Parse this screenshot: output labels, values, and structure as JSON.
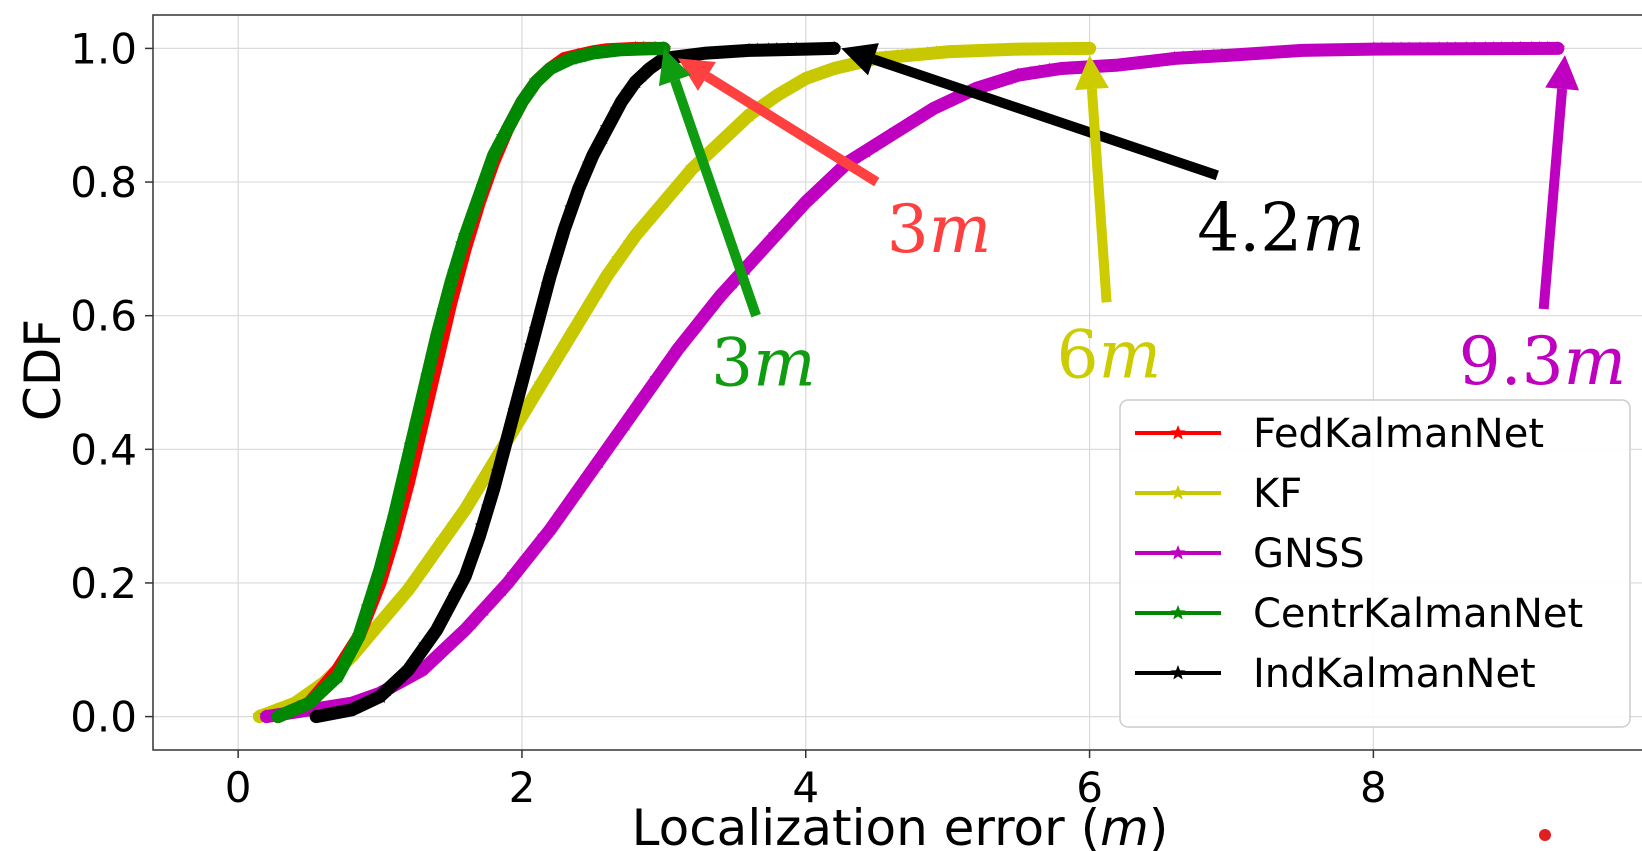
{
  "chart_data": {
    "type": "line",
    "title": "",
    "xlabel": "Localization error",
    "xlabel_unit": "m",
    "ylabel": "CDF",
    "xlim": [
      -0.6,
      9.9
    ],
    "ylim": [
      -0.05,
      1.05
    ],
    "xticks": [
      "0",
      "2",
      "4",
      "6",
      "8"
    ],
    "yticks": [
      "0.0",
      "0.2",
      "0.4",
      "0.6",
      "0.8",
      "1.0"
    ],
    "grid": true,
    "legend_position": "lower-right",
    "series": [
      {
        "name": "FedKalmanNet",
        "color": "#ff0000",
        "marker": "star",
        "x": [
          0.28,
          0.5,
          0.7,
          0.85,
          1.0,
          1.1,
          1.2,
          1.3,
          1.4,
          1.5,
          1.6,
          1.7,
          1.8,
          1.9,
          2.0,
          2.1,
          2.2,
          2.3,
          2.4,
          2.5,
          2.6,
          2.8,
          3.0
        ],
        "y": [
          0.0,
          0.02,
          0.07,
          0.12,
          0.2,
          0.27,
          0.35,
          0.44,
          0.53,
          0.62,
          0.7,
          0.77,
          0.83,
          0.88,
          0.92,
          0.95,
          0.97,
          0.985,
          0.99,
          0.995,
          0.998,
          1.0,
          1.0
        ]
      },
      {
        "name": "KF",
        "color": "#c8c800",
        "marker": "star",
        "x": [
          0.15,
          0.4,
          0.6,
          0.8,
          1.0,
          1.2,
          1.4,
          1.6,
          1.8,
          2.0,
          2.2,
          2.4,
          2.6,
          2.8,
          3.0,
          3.2,
          3.4,
          3.6,
          3.8,
          4.0,
          4.2,
          4.5,
          5.0,
          5.5,
          6.0
        ],
        "y": [
          0.0,
          0.02,
          0.05,
          0.09,
          0.14,
          0.19,
          0.25,
          0.31,
          0.38,
          0.45,
          0.52,
          0.59,
          0.66,
          0.72,
          0.77,
          0.82,
          0.86,
          0.9,
          0.93,
          0.955,
          0.97,
          0.985,
          0.995,
          0.999,
          1.0
        ]
      },
      {
        "name": "GNSS",
        "color": "#c000c0",
        "marker": "star",
        "x": [
          0.2,
          0.5,
          0.8,
          1.0,
          1.3,
          1.6,
          1.9,
          2.2,
          2.5,
          2.8,
          3.1,
          3.4,
          3.7,
          4.0,
          4.3,
          4.6,
          4.9,
          5.2,
          5.5,
          5.8,
          6.2,
          6.6,
          7.0,
          7.5,
          8.0,
          9.3
        ],
        "y": [
          0.0,
          0.01,
          0.02,
          0.035,
          0.07,
          0.13,
          0.2,
          0.28,
          0.37,
          0.46,
          0.55,
          0.63,
          0.7,
          0.77,
          0.83,
          0.87,
          0.91,
          0.94,
          0.96,
          0.97,
          0.975,
          0.985,
          0.99,
          0.997,
          0.999,
          1.0
        ]
      },
      {
        "name": "CentrKalmanNet",
        "color": "#008800",
        "marker": "star",
        "x": [
          0.28,
          0.5,
          0.7,
          0.85,
          1.0,
          1.1,
          1.2,
          1.3,
          1.4,
          1.5,
          1.6,
          1.7,
          1.8,
          1.9,
          2.0,
          2.1,
          2.2,
          2.35,
          2.5,
          2.7,
          3.0
        ],
        "y": [
          0.0,
          0.02,
          0.06,
          0.12,
          0.22,
          0.3,
          0.39,
          0.48,
          0.57,
          0.65,
          0.72,
          0.78,
          0.84,
          0.88,
          0.92,
          0.95,
          0.97,
          0.985,
          0.993,
          0.998,
          1.0
        ]
      },
      {
        "name": "IndKalmanNet",
        "color": "#000000",
        "marker": "star",
        "x": [
          0.55,
          0.8,
          1.0,
          1.2,
          1.4,
          1.6,
          1.7,
          1.8,
          1.9,
          2.0,
          2.1,
          2.2,
          2.3,
          2.4,
          2.5,
          2.6,
          2.7,
          2.8,
          2.9,
          3.0,
          3.3,
          3.6,
          4.0,
          4.2
        ],
        "y": [
          0.0,
          0.01,
          0.03,
          0.07,
          0.13,
          0.21,
          0.27,
          0.34,
          0.42,
          0.5,
          0.58,
          0.66,
          0.73,
          0.79,
          0.84,
          0.88,
          0.92,
          0.95,
          0.97,
          0.985,
          0.993,
          0.997,
          0.999,
          1.0
        ]
      }
    ],
    "annotations": [
      {
        "text": "3m",
        "value": "3",
        "unit": "m",
        "color": "#ff4040",
        "x": 4.5,
        "y": 0.8,
        "target_x": 3.1,
        "target_y": 0.985
      },
      {
        "text": "3m",
        "value": "3",
        "unit": "m",
        "color": "#109c10",
        "x": 3.65,
        "y": 0.6,
        "target_x": 3.0,
        "target_y": 1.0
      },
      {
        "text": "4.2m",
        "value": "4.2",
        "unit": "m",
        "color": "#000000",
        "x": 6.9,
        "y": 0.81,
        "target_x": 4.25,
        "target_y": 1.0
      },
      {
        "text": "6m",
        "value": "6",
        "unit": "m",
        "color": "#cccc00",
        "x": 6.12,
        "y": 0.62,
        "target_x": 6.0,
        "target_y": 0.99
      },
      {
        "text": "9.3m",
        "value": "9.3",
        "unit": "m",
        "color": "#c000c0",
        "x": 9.2,
        "y": 0.61,
        "target_x": 9.35,
        "target_y": 0.99
      }
    ]
  }
}
